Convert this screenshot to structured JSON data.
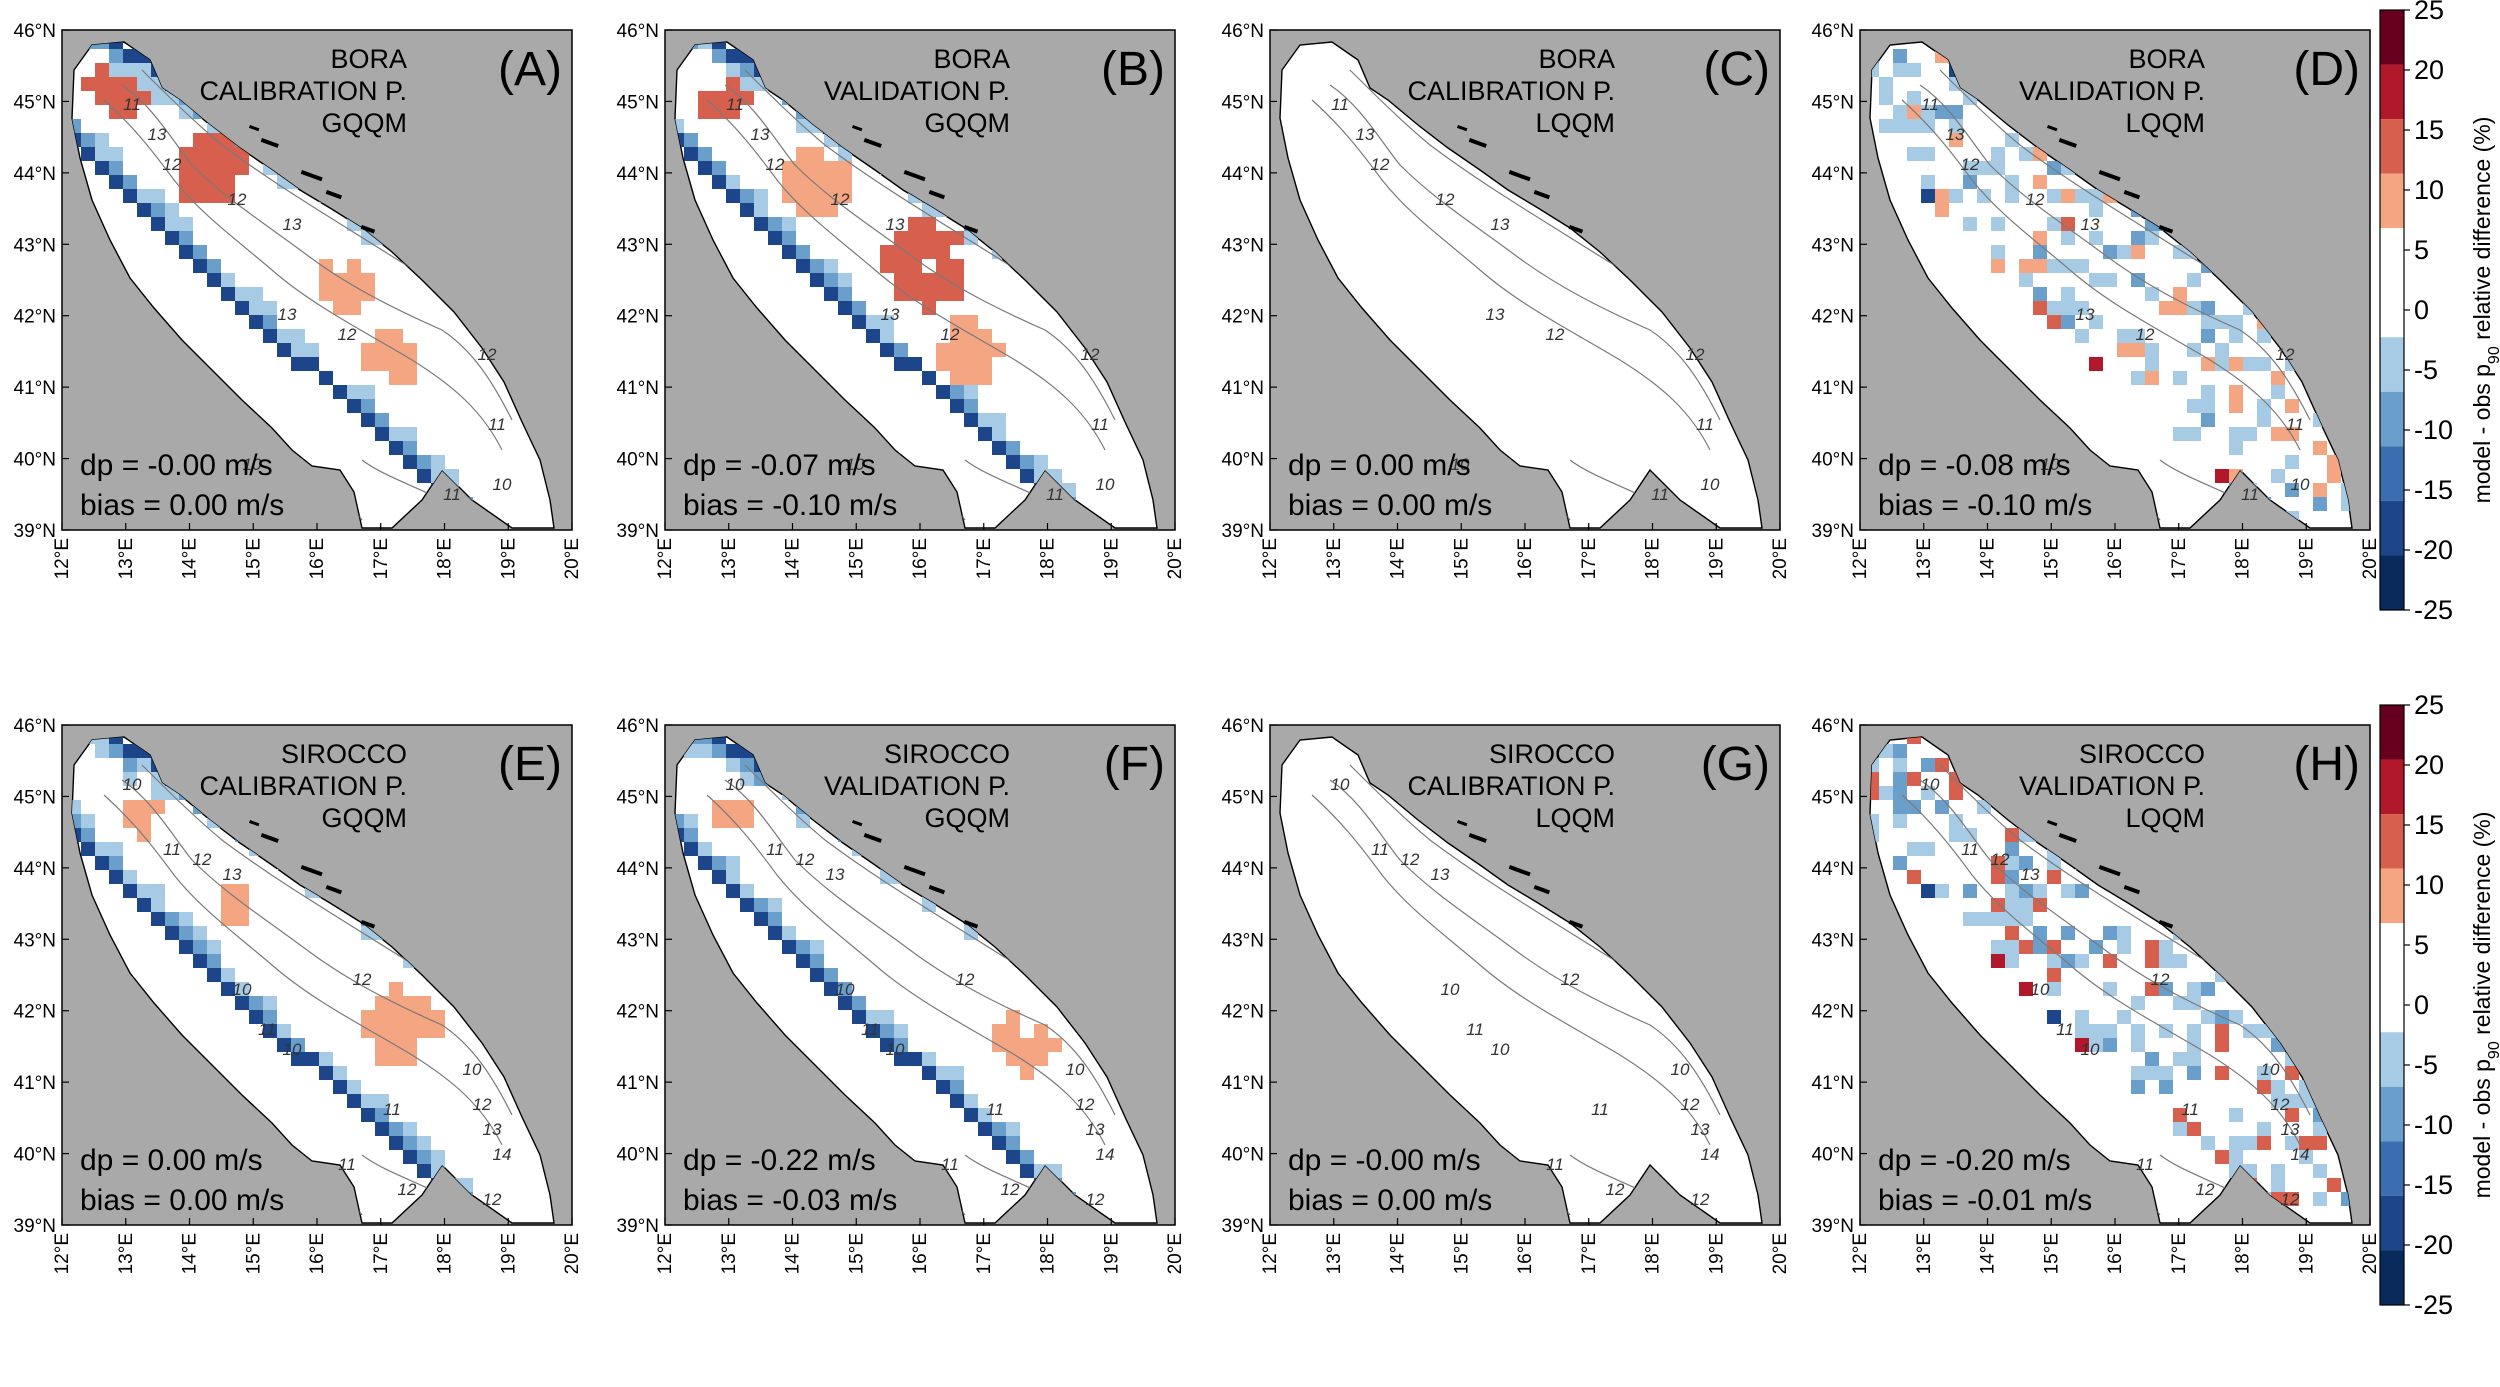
{
  "panels": [
    {
      "letter": "(A)",
      "wind": "BORA",
      "period": "CALIBRATION P.",
      "method": "GQQM",
      "dp": "dp = -0.00 m/s",
      "bias": "bias = 0.00 m/s",
      "pattern": "gqqm_cal_bora"
    },
    {
      "letter": "(B)",
      "wind": "BORA",
      "period": "VALIDATION P.",
      "method": "GQQM",
      "dp": "dp = -0.07 m/s",
      "bias": "bias = -0.10 m/s",
      "pattern": "gqqm_val_bora"
    },
    {
      "letter": "(C)",
      "wind": "BORA",
      "period": "CALIBRATION P.",
      "method": "LQQM",
      "dp": "dp = 0.00 m/s",
      "bias": "bias = 0.00 m/s",
      "pattern": "none"
    },
    {
      "letter": "(D)",
      "wind": "BORA",
      "period": "VALIDATION P.",
      "method": "LQQM",
      "dp": "dp = -0.08 m/s",
      "bias": "bias = -0.10 m/s",
      "pattern": "lqqm_val_bora"
    },
    {
      "letter": "(E)",
      "wind": "SIROCCO",
      "period": "CALIBRATION P.",
      "method": "GQQM",
      "dp": "dp = 0.00 m/s",
      "bias": "bias = 0.00 m/s",
      "pattern": "gqqm_cal_sirocco"
    },
    {
      "letter": "(F)",
      "wind": "SIROCCO",
      "period": "VALIDATION P.",
      "method": "GQQM",
      "dp": "dp = -0.22 m/s",
      "bias": "bias = -0.03 m/s",
      "pattern": "gqqm_val_sirocco"
    },
    {
      "letter": "(G)",
      "wind": "SIROCCO",
      "period": "CALIBRATION P.",
      "method": "LQQM",
      "dp": "dp = -0.00 m/s",
      "bias": "bias = 0.00 m/s",
      "pattern": "none"
    },
    {
      "letter": "(H)",
      "wind": "SIROCCO",
      "period": "VALIDATION P.",
      "method": "LQQM",
      "dp": "dp = -0.20 m/s",
      "bias": "bias = -0.01 m/s",
      "pattern": "lqqm_val_sirocco"
    }
  ],
  "axes": {
    "lat_labels": [
      "46°N",
      "45°N",
      "44°N",
      "43°N",
      "42°N",
      "41°N",
      "40°N",
      "39°N"
    ],
    "lon_labels": [
      "12°E",
      "13°E",
      "14°E",
      "15°E",
      "16°E",
      "17°E",
      "18°E",
      "19°E",
      "20°E"
    ],
    "lat_range": [
      39,
      46
    ],
    "lon_range": [
      12,
      20
    ]
  },
  "contour_labels": {
    "bora": [
      "11",
      "12",
      "13",
      "12",
      "13",
      "13",
      "12",
      "12",
      "11",
      "10",
      "11",
      "10"
    ],
    "sirocco": [
      "10",
      "11",
      "12",
      "13",
      "10",
      "11",
      "12",
      "10",
      "11",
      "10",
      "12",
      "13",
      "14",
      "11",
      "12",
      "12"
    ]
  },
  "colorbar": {
    "label": "model - obs p90 relative difference (%)",
    "label_parts": [
      "model - obs p",
      "90",
      " relative difference (%)"
    ],
    "ticks": [
      "25",
      "20",
      "15",
      "10",
      "5",
      "0",
      "-5",
      "-10",
      "-15",
      "-20",
      "-25"
    ],
    "colors": [
      "#67001f",
      "#b2182b",
      "#d6604d",
      "#f4a582",
      "#ffffff",
      "#ffffff",
      "#a7cbe4",
      "#6a9ecb",
      "#3a6eb0",
      "#1c4689",
      "#0a2a5c"
    ]
  },
  "palette": {
    "land": "#a9a9a9",
    "sea": "#ffffff",
    "contour": "#7a7a7a",
    "red_light": "#f4a582",
    "red_mid": "#d6604d",
    "red_dark": "#b2182b",
    "blue_light": "#a7cbe4",
    "blue_mid": "#6a9ecb",
    "blue_dark": "#1c4689"
  }
}
